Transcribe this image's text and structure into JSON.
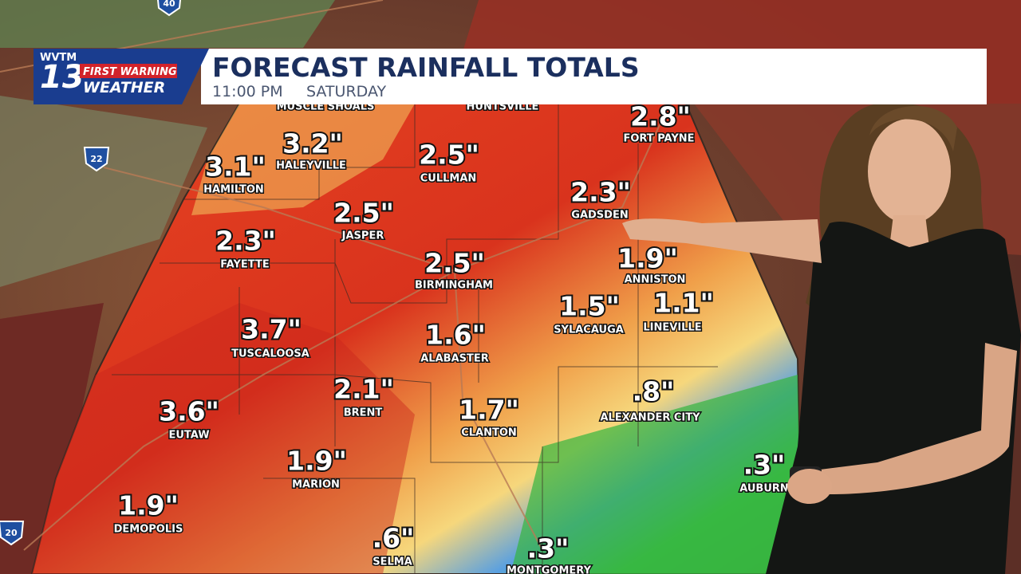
{
  "header": {
    "station": "WVTM",
    "channel": "13",
    "brand_top": "FIRST WARNING",
    "brand_bottom": "WEATHER",
    "title": "FORECAST RAINFALL TOTALS",
    "time": "11:00 PM",
    "day": "SATURDAY"
  },
  "highways": [
    "40",
    "22",
    "20"
  ],
  "cities": [
    {
      "name": "MUSCLE SHOALS"
    },
    {
      "name": "HUNTSVILLE"
    },
    {
      "name": "FORT PAYNE",
      "amount": "2.8\""
    },
    {
      "name": "HALEYVILLE",
      "amount": "3.2\""
    },
    {
      "name": "HAMILTON",
      "amount": "3.1\""
    },
    {
      "name": "CULLMAN",
      "amount": "2.5\""
    },
    {
      "name": "GADSDEN",
      "amount": "2.3\""
    },
    {
      "name": "JASPER",
      "amount": "2.5\""
    },
    {
      "name": "FAYETTE",
      "amount": "2.3\""
    },
    {
      "name": "BIRMINGHAM",
      "amount": "2.5\""
    },
    {
      "name": "ANNISTON",
      "amount": "1.9\""
    },
    {
      "name": "SYLACAUGA",
      "amount": "1.5\""
    },
    {
      "name": "LINEVILLE",
      "amount": "1.1\""
    },
    {
      "name": "TUSCALOOSA",
      "amount": "3.7\""
    },
    {
      "name": "ALABASTER",
      "amount": "1.6\""
    },
    {
      "name": "BRENT",
      "amount": "2.1\""
    },
    {
      "name": "CLANTON",
      "amount": "1.7\""
    },
    {
      "name": "ALEXANDER CITY",
      "amount": ".8\""
    },
    {
      "name": "EUTAW",
      "amount": "3.6\""
    },
    {
      "name": "MARION",
      "amount": "1.9\""
    },
    {
      "name": "AUBURN",
      "amount": ".3\""
    },
    {
      "name": "DEMOPOLIS",
      "amount": "1.9\""
    },
    {
      "name": "SELMA",
      "amount": ".6\""
    },
    {
      "name": "MONTGOMERY",
      "amount": ".3\""
    }
  ]
}
